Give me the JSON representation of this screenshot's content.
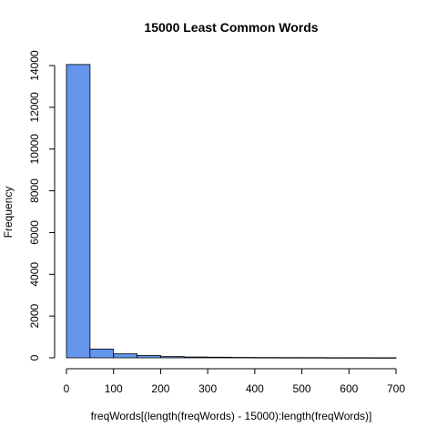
{
  "chart_data": {
    "type": "bar",
    "title": "15000 Least Common Words",
    "xlabel": "freqWords[(length(freqWords) - 15000):length(freqWords)]",
    "ylabel": "Frequency",
    "bin_width": 50,
    "bins": [
      {
        "start": 0,
        "end": 50,
        "count": 14050
      },
      {
        "start": 50,
        "end": 100,
        "count": 420
      },
      {
        "start": 100,
        "end": 150,
        "count": 190
      },
      {
        "start": 150,
        "end": 200,
        "count": 110
      },
      {
        "start": 200,
        "end": 250,
        "count": 60
      },
      {
        "start": 250,
        "end": 300,
        "count": 40
      },
      {
        "start": 300,
        "end": 350,
        "count": 30
      },
      {
        "start": 350,
        "end": 400,
        "count": 20
      },
      {
        "start": 400,
        "end": 450,
        "count": 15
      },
      {
        "start": 450,
        "end": 500,
        "count": 12
      },
      {
        "start": 500,
        "end": 550,
        "count": 10
      },
      {
        "start": 550,
        "end": 600,
        "count": 6
      },
      {
        "start": 600,
        "end": 650,
        "count": 5
      },
      {
        "start": 650,
        "end": 700,
        "count": 3
      }
    ],
    "xlim": [
      0,
      700
    ],
    "ylim": [
      0,
      14000
    ],
    "x_ticks": [
      0,
      100,
      200,
      300,
      400,
      500,
      600,
      700
    ],
    "y_ticks": [
      0,
      2000,
      4000,
      6000,
      8000,
      10000,
      12000,
      14000
    ],
    "bar_color": "#6495ED",
    "grid": false
  }
}
